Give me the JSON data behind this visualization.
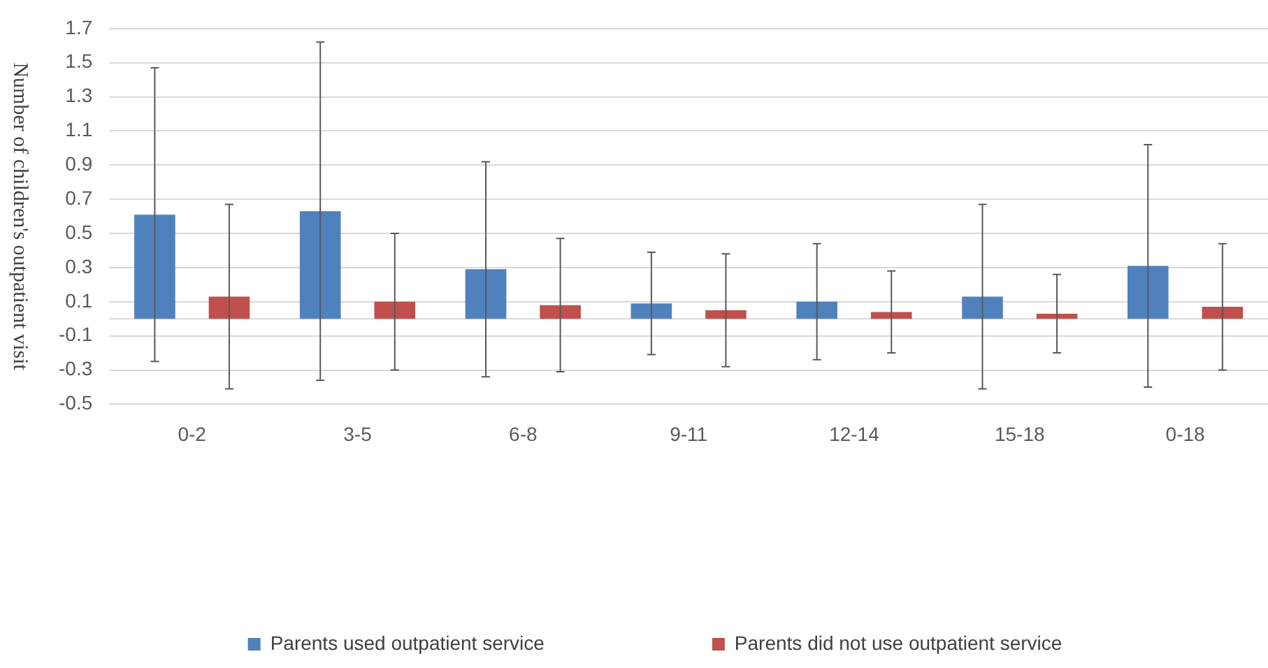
{
  "chart_data": {
    "type": "bar",
    "ylabel": "Number of children's outpatient visit",
    "categories": [
      "0-2",
      "3-5",
      "6-8",
      "9-11",
      "12-14",
      "15-18",
      "0-18"
    ],
    "series": [
      {
        "name": "Parents used outpatient service",
        "color": "#4f81bd",
        "values": [
          0.61,
          0.63,
          0.29,
          0.09,
          0.1,
          0.13,
          0.31
        ],
        "errors": [
          0.86,
          0.99,
          0.63,
          0.3,
          0.34,
          0.54,
          0.71
        ]
      },
      {
        "name": "Parents did not use outpatient service",
        "color": "#c0504d",
        "values": [
          0.13,
          0.1,
          0.08,
          0.05,
          0.04,
          0.03,
          0.07
        ],
        "errors": [
          0.54,
          0.4,
          0.39,
          0.33,
          0.24,
          0.23,
          0.37
        ]
      }
    ],
    "ylim": [
      -0.5,
      1.7
    ],
    "yticks": [
      -0.5,
      -0.3,
      -0.1,
      0.1,
      0.3,
      0.5,
      0.7,
      0.9,
      1.1,
      1.3,
      1.5,
      1.7
    ],
    "grid": "y",
    "legend": "bottom"
  }
}
